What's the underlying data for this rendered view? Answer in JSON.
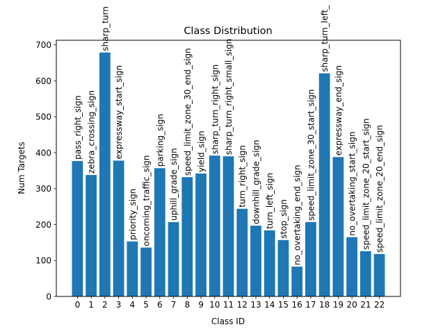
{
  "chart_data": {
    "type": "bar",
    "title": "Class Distribution",
    "xlabel": "Class ID",
    "ylabel": "Num Targets",
    "categories": [
      "0",
      "1",
      "2",
      "3",
      "4",
      "5",
      "6",
      "7",
      "8",
      "9",
      "10",
      "11",
      "12",
      "13",
      "14",
      "15",
      "16",
      "17",
      "18",
      "19",
      "20",
      "21",
      "22"
    ],
    "values": [
      377,
      338,
      679,
      378,
      153,
      136,
      357,
      207,
      332,
      342,
      392,
      390,
      244,
      197,
      184,
      157,
      83,
      207,
      621,
      388,
      165,
      126,
      118
    ],
    "bar_labels": [
      "pass_right_sign",
      "zebra_crossing_sign",
      "sharp_turn",
      "expressway_start_sign",
      "priority_sign",
      "oncoming_traffic_sign",
      "parking_sign",
      "uphill_grade_sign",
      "speed_limit_zone_30_end_sign",
      "yield_sign",
      "sharp_turn_right_sign",
      "sharp_turn_right_small_sign",
      "turn_right_sign",
      "downhill_grade_sign",
      "turn_left_sign",
      "stop_sign",
      "no_overtaking_end_sign",
      "speed_limit_zone_30_start_sign",
      "sharp_turn_left_",
      "expressway_end_sign",
      "no_overtaking_start_sign",
      "speed_limit_zone_20_start_sign",
      "speed_limit_zone_20_end_sign"
    ],
    "yticks": [
      0,
      100,
      200,
      300,
      400,
      500,
      600,
      700
    ],
    "ylim": [
      0,
      713
    ],
    "xlim": [
      -1.54,
      23.54
    ],
    "grid": false,
    "bar_color": "#1f77b4"
  }
}
